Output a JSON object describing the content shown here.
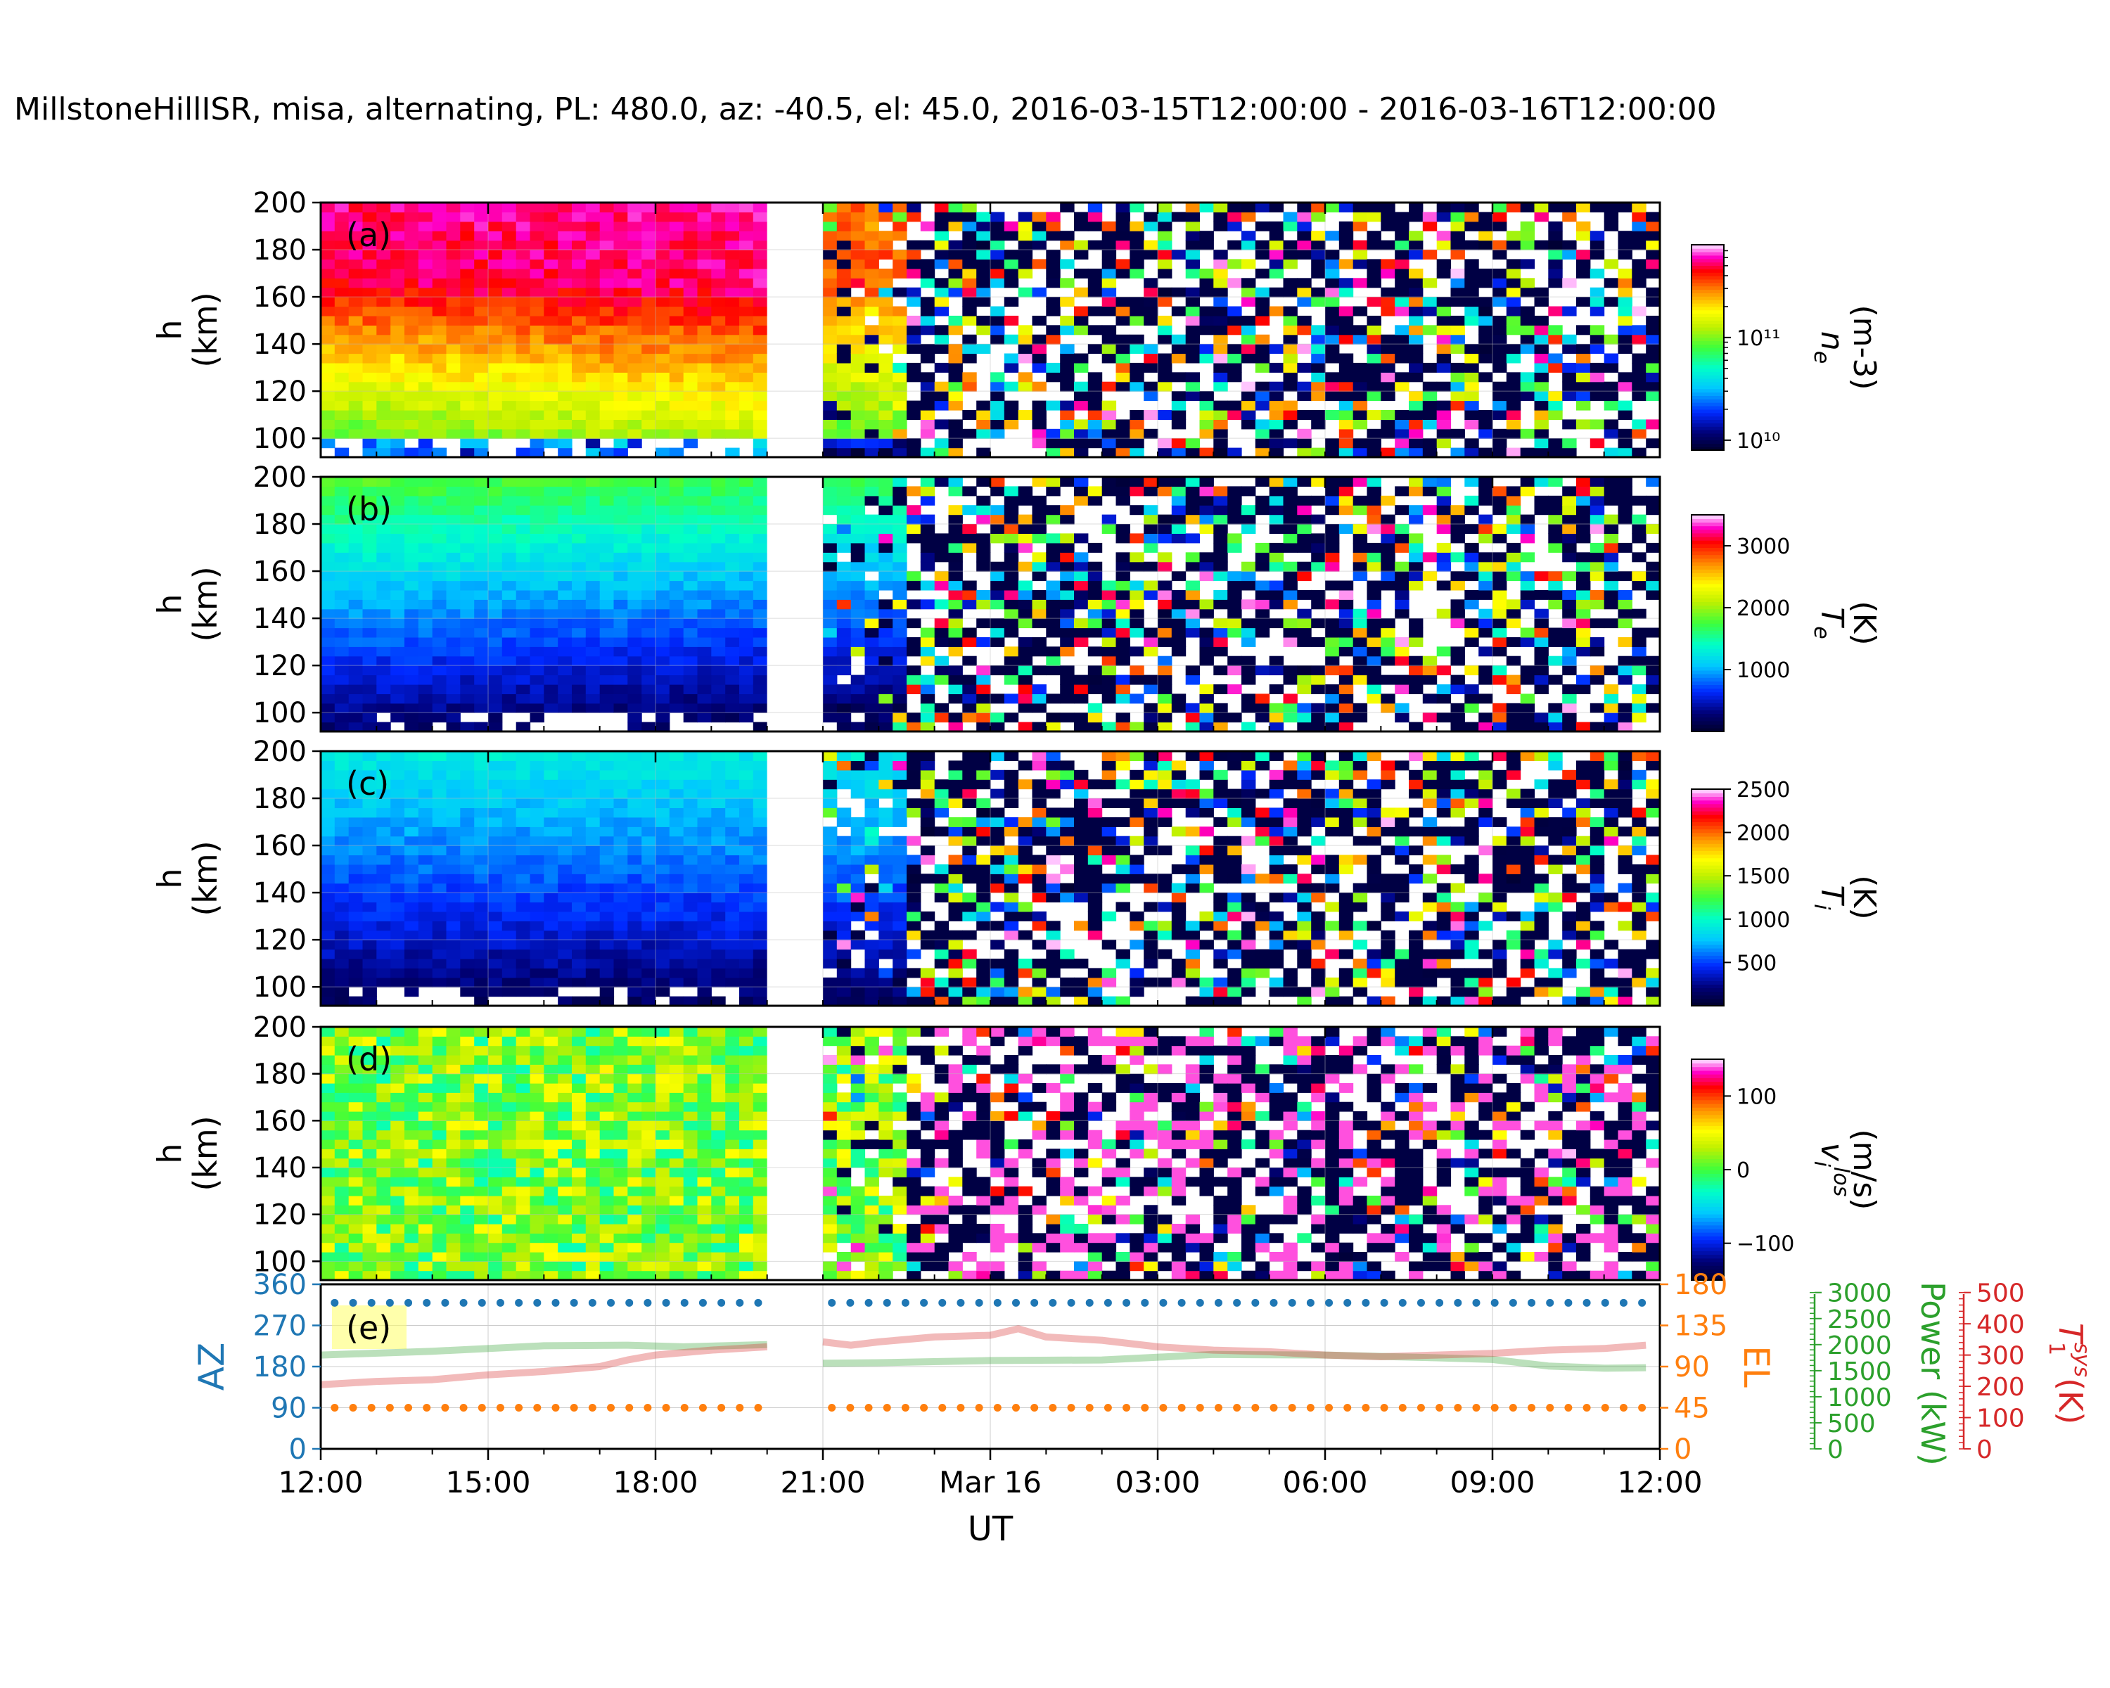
{
  "title": "MillstoneHillISR, misa, alternating, PL: 480.0, az: -40.5, el: 45.0, 2016-03-15T12:00:00 - 2016-03-16T12:00:00",
  "colors": {
    "az": "#1f77b4",
    "el": "#ff7f0e",
    "power": "#2ca02c",
    "tsys": "#d62728",
    "grid": "#dddddd"
  },
  "chart_data": [
    {
      "panel": "a",
      "type": "heatmap",
      "label": "(a)",
      "ylabel": "h\n(km)",
      "ylim": [
        92,
        200
      ],
      "yticks": [
        100,
        120,
        140,
        160,
        180,
        200
      ],
      "xlim": [
        "2016-03-15T12:00",
        "2016-03-16T12:00"
      ],
      "data_gap": [
        "2016-03-15T20:00",
        "2016-03-15T21:00"
      ],
      "colorbar": {
        "label": "n_e (m-3)",
        "scale": "log",
        "range": [
          8000000000.0,
          800000000000.0
        ],
        "ticks": [
          {
            "value": 10000000000.0,
            "text": "10¹⁰"
          },
          {
            "value": 100000000000.0,
            "text": "10¹¹"
          }
        ]
      },
      "trend": "before 20:00 UT densities grow with height (green/yellow near 100 km, red above ~150 km); after 21:00 UT mostly noisy low values"
    },
    {
      "panel": "b",
      "type": "heatmap",
      "label": "(b)",
      "ylabel": "h\n(km)",
      "ylim": [
        92,
        200
      ],
      "yticks": [
        100,
        120,
        140,
        160,
        180,
        200
      ],
      "colorbar": {
        "label": "T_e (K)",
        "range": [
          0,
          3500
        ],
        "ticks": [
          {
            "value": 1000,
            "text": "1000"
          },
          {
            "value": 2000,
            "text": "2000"
          },
          {
            "value": 3000,
            "text": "3000"
          }
        ]
      },
      "trend": "temperature rises with height (~300 K at 100 km to ~1500 K at 200 km); noisy after 21:00 UT"
    },
    {
      "panel": "c",
      "type": "heatmap",
      "label": "(c)",
      "ylabel": "h\n(km)",
      "ylim": [
        92,
        200
      ],
      "yticks": [
        100,
        120,
        140,
        160,
        180,
        200
      ],
      "colorbar": {
        "label": "T_i (K)",
        "range": [
          0,
          2500
        ],
        "ticks": [
          {
            "value": 500,
            "text": "500"
          },
          {
            "value": 1000,
            "text": "1000"
          },
          {
            "value": 1500,
            "text": "1500"
          },
          {
            "value": 2000,
            "text": "2000"
          },
          {
            "value": 2500,
            "text": "2500"
          }
        ]
      },
      "trend": "ion temperature rises with height (~200 K at 100 km to ~850 K at 200 km); noisy after 21:00 UT"
    },
    {
      "panel": "d",
      "type": "heatmap",
      "label": "(d)",
      "ylabel": "h\n(km)",
      "ylim": [
        92,
        200
      ],
      "yticks": [
        100,
        120,
        140,
        160,
        180,
        200
      ],
      "colorbar": {
        "label": "v_i^los (m/s)",
        "range": [
          -150,
          150
        ],
        "ticks": [
          {
            "value": -100,
            "text": "−100"
          },
          {
            "value": 0,
            "text": "0"
          },
          {
            "value": 100,
            "text": "100"
          }
        ]
      },
      "trend": "line-of-sight velocity scattered around 0 to +50 m/s before 20:00 UT; noisy afterwards"
    },
    {
      "panel": "e",
      "type": "line",
      "label": "(e)",
      "axes": {
        "az": {
          "label": "AZ",
          "range": [
            0,
            360
          ],
          "ticks": [
            0,
            90,
            180,
            270,
            360
          ]
        },
        "el": {
          "label": "EL",
          "range": [
            0,
            180
          ],
          "ticks": [
            0,
            45,
            90,
            135,
            180
          ]
        },
        "power": {
          "label": "Power (kW)",
          "range": [
            0,
            3000
          ],
          "ticks": [
            0,
            500,
            1000,
            1500,
            2000,
            2500,
            3000
          ]
        },
        "tsys": {
          "label": "T_1^sys (K)",
          "range": [
            0,
            500
          ],
          "ticks": [
            0,
            100,
            200,
            300,
            400,
            500
          ]
        }
      },
      "series": [
        {
          "name": "AZ",
          "axis": "az",
          "style": "dots",
          "value": 319.5
        },
        {
          "name": "EL",
          "axis": "el",
          "style": "dots",
          "value": 45
        },
        {
          "name": "Power (kW)",
          "axis": "power",
          "style": "line",
          "x": [
            12.0,
            14.0,
            16.0,
            17.5,
            18.5,
            20.0,
            21.0,
            22.0,
            24.0,
            26.0,
            28.0,
            30.0,
            32.0,
            33.0,
            34.0,
            35.0,
            35.75
          ],
          "y": [
            1710,
            1780,
            1880,
            1890,
            1860,
            1900,
            1560,
            1570,
            1610,
            1620,
            1720,
            1710,
            1660,
            1630,
            1510,
            1470,
            1480
          ]
        },
        {
          "name": "T_1^sys (K)",
          "axis": "tsys",
          "style": "line",
          "x": [
            12.0,
            13.0,
            14.0,
            15.0,
            16.0,
            17.0,
            17.5,
            18.0,
            19.0,
            20.0,
            21.0,
            21.5,
            22.0,
            23.0,
            24.0,
            24.5,
            25.0,
            26.0,
            27.0,
            28.0,
            29.0,
            30.0,
            31.0,
            32.0,
            33.0,
            34.0,
            35.0,
            35.75
          ],
          "y": [
            195,
            205,
            210,
            225,
            235,
            250,
            270,
            285,
            300,
            310,
            325,
            315,
            325,
            340,
            345,
            365,
            340,
            330,
            310,
            300,
            295,
            285,
            280,
            285,
            290,
            300,
            305,
            315
          ]
        }
      ]
    }
  ],
  "xaxis": {
    "label": "UT",
    "ticks": [
      {
        "value": 12,
        "text": "12:00"
      },
      {
        "value": 15,
        "text": "15:00"
      },
      {
        "value": 18,
        "text": "18:00"
      },
      {
        "value": 21,
        "text": "21:00"
      },
      {
        "value": 24,
        "text": "Mar 16"
      },
      {
        "value": 27,
        "text": "03:00"
      },
      {
        "value": 30,
        "text": "06:00"
      },
      {
        "value": 33,
        "text": "09:00"
      },
      {
        "value": 36,
        "text": "12:00"
      }
    ]
  }
}
